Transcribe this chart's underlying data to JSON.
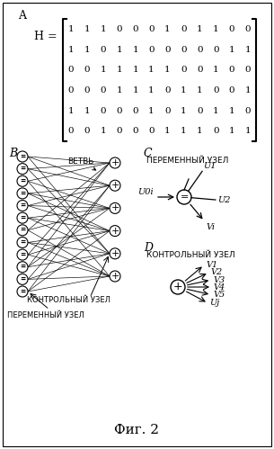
{
  "matrix": [
    [
      1,
      1,
      1,
      0,
      0,
      0,
      1,
      0,
      1,
      1,
      0,
      0
    ],
    [
      1,
      1,
      0,
      1,
      1,
      0,
      0,
      0,
      0,
      0,
      1,
      1
    ],
    [
      0,
      0,
      1,
      1,
      1,
      1,
      1,
      0,
      0,
      1,
      0,
      0
    ],
    [
      0,
      0,
      0,
      1,
      1,
      1,
      0,
      1,
      1,
      0,
      0,
      1
    ],
    [
      1,
      1,
      0,
      0,
      0,
      1,
      0,
      1,
      0,
      1,
      1,
      0
    ],
    [
      0,
      0,
      1,
      0,
      0,
      0,
      1,
      1,
      1,
      0,
      1,
      1
    ]
  ],
  "label_A": "A",
  "label_H": "H =",
  "label_B": "B",
  "label_C": "C",
  "label_D": "D",
  "fig_label": "Фиг. 2",
  "text_branch": "ВЕТВЬ",
  "text_check": "КОНТРОЛЬНЫЙ УЗЕЛ",
  "text_var": "ПЕРЕМЕННЫЙ УЗЕЛ",
  "text_var_node_c": "ПЕРЕМЕННЫЙ УЗЕЛ",
  "text_check_node_d": "КОНТРОЛЬНЫЙ УЗЕЛ",
  "bg_color": "#ffffff",
  "line_color": "#000000",
  "node_color": "#ffffff",
  "node_edge_color": "#000000"
}
